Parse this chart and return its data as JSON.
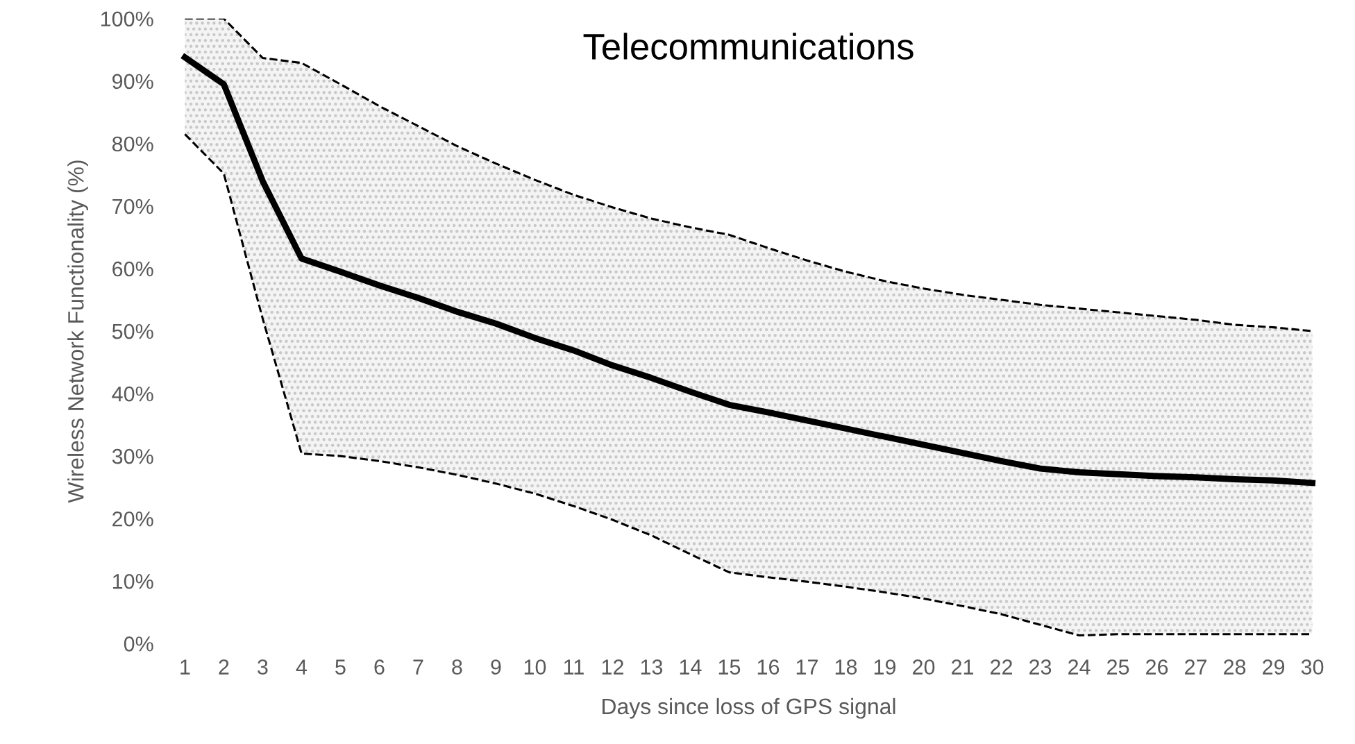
{
  "chart_data": {
    "type": "line",
    "title": "Telecommunications",
    "xlabel": "Days since loss of GPS signal",
    "ylabel": "Wireless Network Functionality (%)",
    "categories": [
      "1",
      "2",
      "3",
      "4",
      "5",
      "6",
      "7",
      "8",
      "9",
      "10",
      "11",
      "12",
      "13",
      "14",
      "15",
      "16",
      "17",
      "18",
      "19",
      "20",
      "21",
      "22",
      "23",
      "24",
      "25",
      "26",
      "27",
      "28",
      "29",
      "30"
    ],
    "series": [
      {
        "color": "#000000",
        "values": [
          93.8,
          89.5,
          74,
          61.6,
          59.5,
          57.3,
          55.3,
          53.1,
          51.2,
          48.9,
          46.9,
          44.5,
          42.5,
          40.3,
          38.2,
          37,
          35.7,
          34.4,
          33.1,
          31.8,
          30.5,
          29.2,
          28,
          27.4,
          27.1,
          26.8,
          26.6,
          26.3,
          26.1,
          25.7
        ],
        "upper": [
          100,
          100,
          93.7,
          92.9,
          89.5,
          86,
          82.8,
          79.6,
          76.8,
          74.2,
          71.8,
          69.8,
          68,
          66.6,
          65.4,
          63.3,
          61.3,
          59.5,
          58,
          56.8,
          55.8,
          55,
          54.2,
          53.6,
          53,
          52.4,
          51.8,
          51,
          50.6,
          50
        ],
        "lower": [
          81.5,
          75.2,
          52,
          30.4,
          30,
          29.2,
          28.2,
          27,
          25.6,
          24,
          22,
          19.8,
          17.3,
          14.3,
          11.4,
          10.6,
          9.9,
          9.1,
          8.2,
          7.2,
          6,
          4.7,
          3,
          1.3,
          1.5,
          1.5,
          1.5,
          1.5,
          1.5,
          1.5
        ]
      },
      {
        "color": "#000000",
        "line_style": "dashed",
        "values": [
          100,
          100,
          93.7,
          92.9,
          89.5,
          86,
          82.8,
          79.6,
          76.8,
          74.2,
          71.8,
          69.8,
          68,
          66.6,
          65.4,
          63.3,
          61.3,
          59.5,
          58,
          56.8,
          55.8,
          55,
          54.2,
          53.6,
          53,
          52.4,
          51.8,
          51,
          50.6,
          50
        ]
      },
      {
        "color": "#000000",
        "line_style": "dashed",
        "values": [
          81.5,
          75.2,
          52,
          30.4,
          30,
          29.2,
          28.2,
          27,
          25.6,
          24,
          22,
          19.8,
          17.3,
          14.3,
          11.4,
          10.6,
          9.9,
          9.1,
          8.2,
          7.2,
          6,
          4.7,
          3,
          1.3,
          1.5,
          1.5,
          1.5,
          1.5,
          1.5,
          1.5
        ]
      }
    ],
    "ylim": [
      0,
      100
    ],
    "yticks": [
      {
        "value": 0,
        "label": "0%"
      },
      {
        "value": 10,
        "label": "10%"
      },
      {
        "value": 20,
        "label": "20%"
      },
      {
        "value": 30,
        "label": "30%"
      },
      {
        "value": 40,
        "label": "40%"
      },
      {
        "value": 50,
        "label": "50%"
      },
      {
        "value": 60,
        "label": "60%"
      },
      {
        "value": 70,
        "label": "70%"
      },
      {
        "value": 80,
        "label": "80%"
      },
      {
        "value": 90,
        "label": "90%"
      },
      {
        "value": 100,
        "label": "100%"
      }
    ],
    "grid": false,
    "marker": "none",
    "line_style": "solid"
  }
}
